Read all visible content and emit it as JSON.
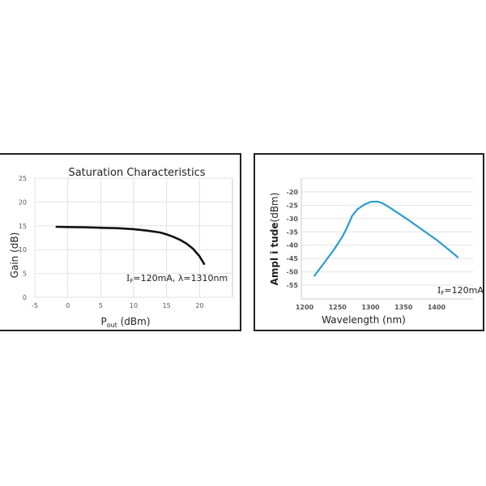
{
  "chart_data": [
    {
      "type": "line",
      "title": "Saturation Characteristics",
      "xlabel": "P_out (dBm)",
      "ylabel": "Gain (dB)",
      "xlim": [
        -5,
        25
      ],
      "ylim": [
        0,
        25
      ],
      "xticks": [
        "-5",
        "0",
        "5",
        "10",
        "15",
        "20"
      ],
      "yticks": [
        "0",
        "5",
        "10",
        "15",
        "20",
        "25"
      ],
      "grid": true,
      "annotation": "I_F=120mA, λ=1310nm",
      "series": [
        {
          "name": "Gain",
          "color": "#111111",
          "x": [
            -1.7,
            0,
            2.5,
            5,
            7.5,
            10,
            12,
            14,
            15,
            16,
            17,
            18,
            19,
            20,
            20.7
          ],
          "y": [
            14.8,
            14.75,
            14.7,
            14.6,
            14.5,
            14.3,
            14.0,
            13.6,
            13.2,
            12.7,
            12.1,
            11.3,
            10.2,
            8.6,
            7.0
          ]
        }
      ]
    },
    {
      "type": "line",
      "title": "",
      "xlabel": "Wavelength (nm)",
      "ylabel": "Amplitude (dBm)",
      "xlim": [
        1200,
        1455
      ],
      "ylim": [
        -59,
        -15
      ],
      "xticks": [
        "1200",
        "1250",
        "1300",
        "1350",
        "1400"
      ],
      "yticks": [
        "-20",
        "-25",
        "-30",
        "-35",
        "-40",
        "-45",
        "-50",
        "-55"
      ],
      "grid": true,
      "annotation": "I_F=120mA",
      "series": [
        {
          "name": "Spectrum",
          "color": "#2b9ccf",
          "x": [
            1215,
            1230,
            1245,
            1258,
            1265,
            1272,
            1280,
            1290,
            1300,
            1310,
            1318,
            1330,
            1345,
            1360,
            1380,
            1400,
            1420,
            1432
          ],
          "y": [
            -51.5,
            -46.5,
            -41.5,
            -36.5,
            -33,
            -29,
            -26.5,
            -24.8,
            -23.7,
            -23.6,
            -24.2,
            -26,
            -28.5,
            -31,
            -34.5,
            -38,
            -42,
            -44.5
          ]
        }
      ]
    }
  ],
  "left": {
    "title": "Saturation Characteristics",
    "xlabel_main": "P",
    "xlabel_sub": "out",
    "xlabel_rest": " (dBm)",
    "ylabel": "Gain (dB)",
    "note_I": "I",
    "note_sub": "F",
    "note_rest": "=120mA, λ=1310nm"
  },
  "right": {
    "xlabel": "Wavelength (nm)",
    "ylabel_bold": "Ampl i tude",
    "ylabel_rest": "(dBm)",
    "note_I": "I",
    "note_sub": "F",
    "note_rest": "=120mA"
  }
}
